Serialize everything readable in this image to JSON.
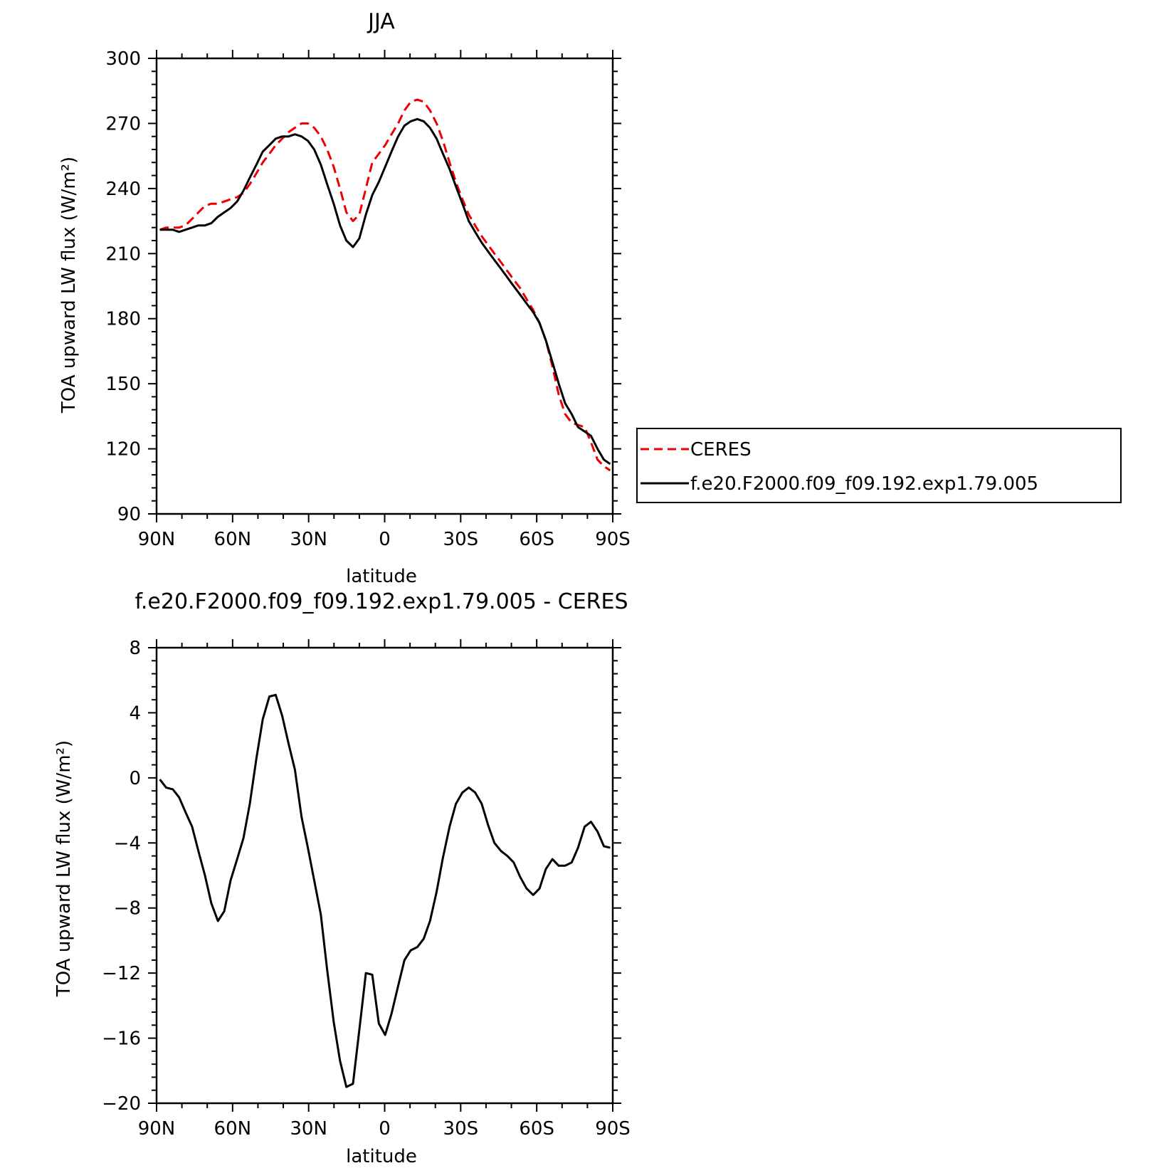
{
  "chart_data": [
    {
      "type": "line",
      "title": "JJA",
      "xlabel": "latitude",
      "ylabel": "TOA upward LW flux (W/m²)",
      "xlim": [
        -90,
        90
      ],
      "ylim": [
        90,
        300
      ],
      "xticks": [
        -90,
        -60,
        -30,
        0,
        30,
        60,
        90
      ],
      "xticklabels": [
        "90N",
        "60N",
        "30N",
        "0",
        "30S",
        "60S",
        "90S"
      ],
      "yticks": [
        90,
        120,
        150,
        180,
        210,
        240,
        270,
        300
      ],
      "yticklabels": [
        "90",
        "120",
        "150",
        "180",
        "210",
        "240",
        "270",
        "300"
      ],
      "legend_position": "right",
      "series": [
        {
          "name": "CERES",
          "color": "#ee0000",
          "dash": "dashed",
          "x": [
            -88.7,
            -86.2,
            -83.6,
            -81.1,
            -78.6,
            -76.0,
            -73.5,
            -70.9,
            -68.4,
            -65.8,
            -63.3,
            -60.8,
            -58.2,
            -55.7,
            -53.2,
            -50.6,
            -48.1,
            -45.5,
            -43.0,
            -40.4,
            -37.9,
            -35.4,
            -32.8,
            -30.3,
            -27.8,
            -25.2,
            -22.7,
            -20.1,
            -17.6,
            -15.1,
            -12.5,
            -10.0,
            -7.4,
            -4.9,
            -2.3,
            0.2,
            2.7,
            5.3,
            7.8,
            10.3,
            12.9,
            15.4,
            17.9,
            20.5,
            23.0,
            25.6,
            28.1,
            30.7,
            33.2,
            35.7,
            38.3,
            40.8,
            43.3,
            45.9,
            48.4,
            50.9,
            53.5,
            56.0,
            58.6,
            61.1,
            63.6,
            66.2,
            68.7,
            71.2,
            73.8,
            76.3,
            78.9,
            81.4,
            84.0,
            86.5,
            89.0
          ],
          "y": [
            221,
            222,
            222,
            222,
            223,
            226,
            229,
            232,
            233,
            233,
            234,
            235,
            236,
            238,
            242,
            247,
            252,
            256,
            260,
            263,
            266,
            268,
            270,
            270,
            268,
            264,
            258,
            250,
            240,
            229,
            225,
            228,
            240,
            252,
            256,
            260,
            265,
            270,
            276,
            280,
            281,
            280,
            276,
            270,
            262,
            252,
            243,
            235,
            228,
            223,
            218,
            214,
            210,
            206,
            202,
            198,
            194,
            189,
            184,
            178,
            170,
            158,
            145,
            136,
            132,
            131,
            130,
            123,
            115,
            112,
            110
          ]
        },
        {
          "name": "f.e20.F2000.f09_f09.192.exp1.79.005",
          "color": "#000000",
          "dash": "solid",
          "x": [
            -88.7,
            -86.2,
            -83.6,
            -81.1,
            -78.6,
            -76.0,
            -73.5,
            -70.9,
            -68.4,
            -65.8,
            -63.3,
            -60.8,
            -58.2,
            -55.7,
            -53.2,
            -50.6,
            -48.1,
            -45.5,
            -43.0,
            -40.4,
            -37.9,
            -35.4,
            -32.8,
            -30.3,
            -27.8,
            -25.2,
            -22.7,
            -20.1,
            -17.6,
            -15.1,
            -12.5,
            -10.0,
            -7.4,
            -4.9,
            -2.3,
            0.2,
            2.7,
            5.3,
            7.8,
            10.3,
            12.9,
            15.4,
            17.9,
            20.5,
            23.0,
            25.6,
            28.1,
            30.7,
            33.2,
            35.7,
            38.3,
            40.8,
            43.3,
            45.9,
            48.4,
            50.9,
            53.5,
            56.0,
            58.6,
            61.1,
            63.6,
            66.2,
            68.7,
            71.2,
            73.8,
            76.3,
            78.9,
            81.4,
            84.0,
            86.5,
            89.0
          ],
          "y": [
            221,
            221,
            221,
            220,
            221,
            222,
            223,
            223,
            224,
            227,
            229,
            231,
            234,
            239,
            245,
            251,
            257,
            260,
            263,
            264,
            264,
            265,
            264,
            262,
            258,
            251,
            242,
            233,
            223,
            216,
            213,
            217,
            228,
            237,
            243,
            250,
            257,
            264,
            269,
            271,
            272,
            271,
            268,
            263,
            256,
            249,
            241,
            233,
            225,
            220,
            215,
            211,
            207,
            203,
            199,
            195,
            191,
            187,
            183,
            178,
            170,
            160,
            150,
            141,
            136,
            130,
            128,
            126,
            120,
            115,
            113
          ]
        }
      ]
    },
    {
      "type": "line",
      "title": "f.e20.F2000.f09_f09.192.exp1.79.005 - CERES",
      "xlabel": "latitude",
      "ylabel": "TOA upward LW flux (W/m²)",
      "xlim": [
        -90,
        90
      ],
      "ylim": [
        -20,
        8
      ],
      "xticks": [
        -90,
        -60,
        -30,
        0,
        30,
        60,
        90
      ],
      "xticklabels": [
        "90N",
        "60N",
        "30N",
        "0",
        "30S",
        "60S",
        "90S"
      ],
      "yticks": [
        -20,
        -16,
        -12,
        -8,
        -4,
        0,
        4,
        8
      ],
      "yticklabels": [
        "−20",
        "−16",
        "−12",
        "−8",
        "−4",
        "0",
        "4",
        "8"
      ],
      "series": [
        {
          "color": "#000000",
          "dash": "solid",
          "x": [
            -88.7,
            -86.2,
            -83.6,
            -81.1,
            -78.6,
            -76.0,
            -73.5,
            -70.9,
            -68.4,
            -65.8,
            -63.3,
            -60.8,
            -58.2,
            -55.7,
            -53.2,
            -50.6,
            -48.1,
            -45.5,
            -43.0,
            -40.4,
            -37.9,
            -35.4,
            -32.8,
            -30.3,
            -27.8,
            -25.2,
            -22.7,
            -20.1,
            -17.6,
            -15.1,
            -12.5,
            -10.0,
            -7.4,
            -4.9,
            -2.3,
            0.2,
            2.7,
            5.3,
            7.8,
            10.3,
            12.9,
            15.4,
            17.9,
            20.5,
            23.0,
            25.6,
            28.1,
            30.7,
            33.2,
            35.7,
            38.3,
            40.8,
            43.3,
            45.9,
            48.4,
            50.9,
            53.5,
            56.0,
            58.6,
            61.1,
            63.6,
            66.2,
            68.7,
            71.2,
            73.8,
            76.3,
            78.9,
            81.4,
            84.0,
            86.5,
            89.0
          ],
          "y": [
            -0.1,
            -0.6,
            -0.7,
            -1.2,
            -2.1,
            -3.0,
            -4.5,
            -6.0,
            -7.7,
            -8.8,
            -8.2,
            -6.3,
            -5.0,
            -3.7,
            -1.6,
            1.2,
            3.6,
            5.0,
            5.1,
            3.8,
            2.1,
            0.5,
            -2.4,
            -4.3,
            -6.3,
            -8.4,
            -11.8,
            -15.0,
            -17.4,
            -19.0,
            -18.8,
            -15.5,
            -12.0,
            -12.1,
            -15.1,
            -15.8,
            -14.5,
            -12.8,
            -11.2,
            -10.6,
            -10.4,
            -9.9,
            -8.8,
            -7.0,
            -4.9,
            -3.0,
            -1.6,
            -0.9,
            -0.6,
            -0.9,
            -1.6,
            -2.9,
            -4.0,
            -4.5,
            -4.8,
            -5.2,
            -6.1,
            -6.8,
            -7.2,
            -6.8,
            -5.6,
            -5.0,
            -5.4,
            -5.4,
            -5.2,
            -4.3,
            -3.0,
            -2.7,
            -3.3,
            -4.2,
            -4.3
          ]
        }
      ]
    }
  ]
}
